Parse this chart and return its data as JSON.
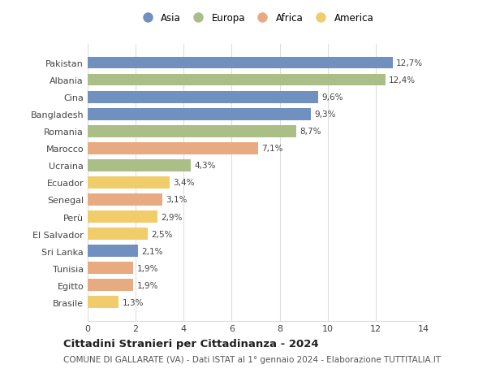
{
  "categories": [
    "Pakistan",
    "Albania",
    "Cina",
    "Bangladesh",
    "Romania",
    "Marocco",
    "Ucraina",
    "Ecuador",
    "Senegal",
    "Perù",
    "El Salvador",
    "Sri Lanka",
    "Tunisia",
    "Egitto",
    "Brasile"
  ],
  "values": [
    12.7,
    12.4,
    9.6,
    9.3,
    8.7,
    7.1,
    4.3,
    3.4,
    3.1,
    2.9,
    2.5,
    2.1,
    1.9,
    1.9,
    1.3
  ],
  "labels": [
    "12,7%",
    "12,4%",
    "9,6%",
    "9,3%",
    "8,7%",
    "7,1%",
    "4,3%",
    "3,4%",
    "3,1%",
    "2,9%",
    "2,5%",
    "2,1%",
    "1,9%",
    "1,9%",
    "1,3%"
  ],
  "continents": [
    "Asia",
    "Europa",
    "Asia",
    "Asia",
    "Europa",
    "Africa",
    "Europa",
    "America",
    "Africa",
    "America",
    "America",
    "Asia",
    "Africa",
    "Africa",
    "America"
  ],
  "continent_colors": {
    "Asia": "#7090c0",
    "Europa": "#aabf88",
    "Africa": "#e8aa80",
    "America": "#f0cc6a"
  },
  "legend_order": [
    "Asia",
    "Europa",
    "Africa",
    "America"
  ],
  "title": "Cittadini Stranieri per Cittadinanza - 2024",
  "subtitle": "COMUNE DI GALLARATE (VA) - Dati ISTAT al 1° gennaio 2024 - Elaborazione TUTTITALIA.IT",
  "xlim": [
    0,
    14
  ],
  "xticks": [
    0,
    2,
    4,
    6,
    8,
    10,
    12,
    14
  ],
  "background_color": "#ffffff",
  "bar_height": 0.7,
  "grid_color": "#dddddd",
  "label_fontsize": 7.5,
  "tick_fontsize": 8,
  "title_fontsize": 9.5,
  "subtitle_fontsize": 7.5
}
